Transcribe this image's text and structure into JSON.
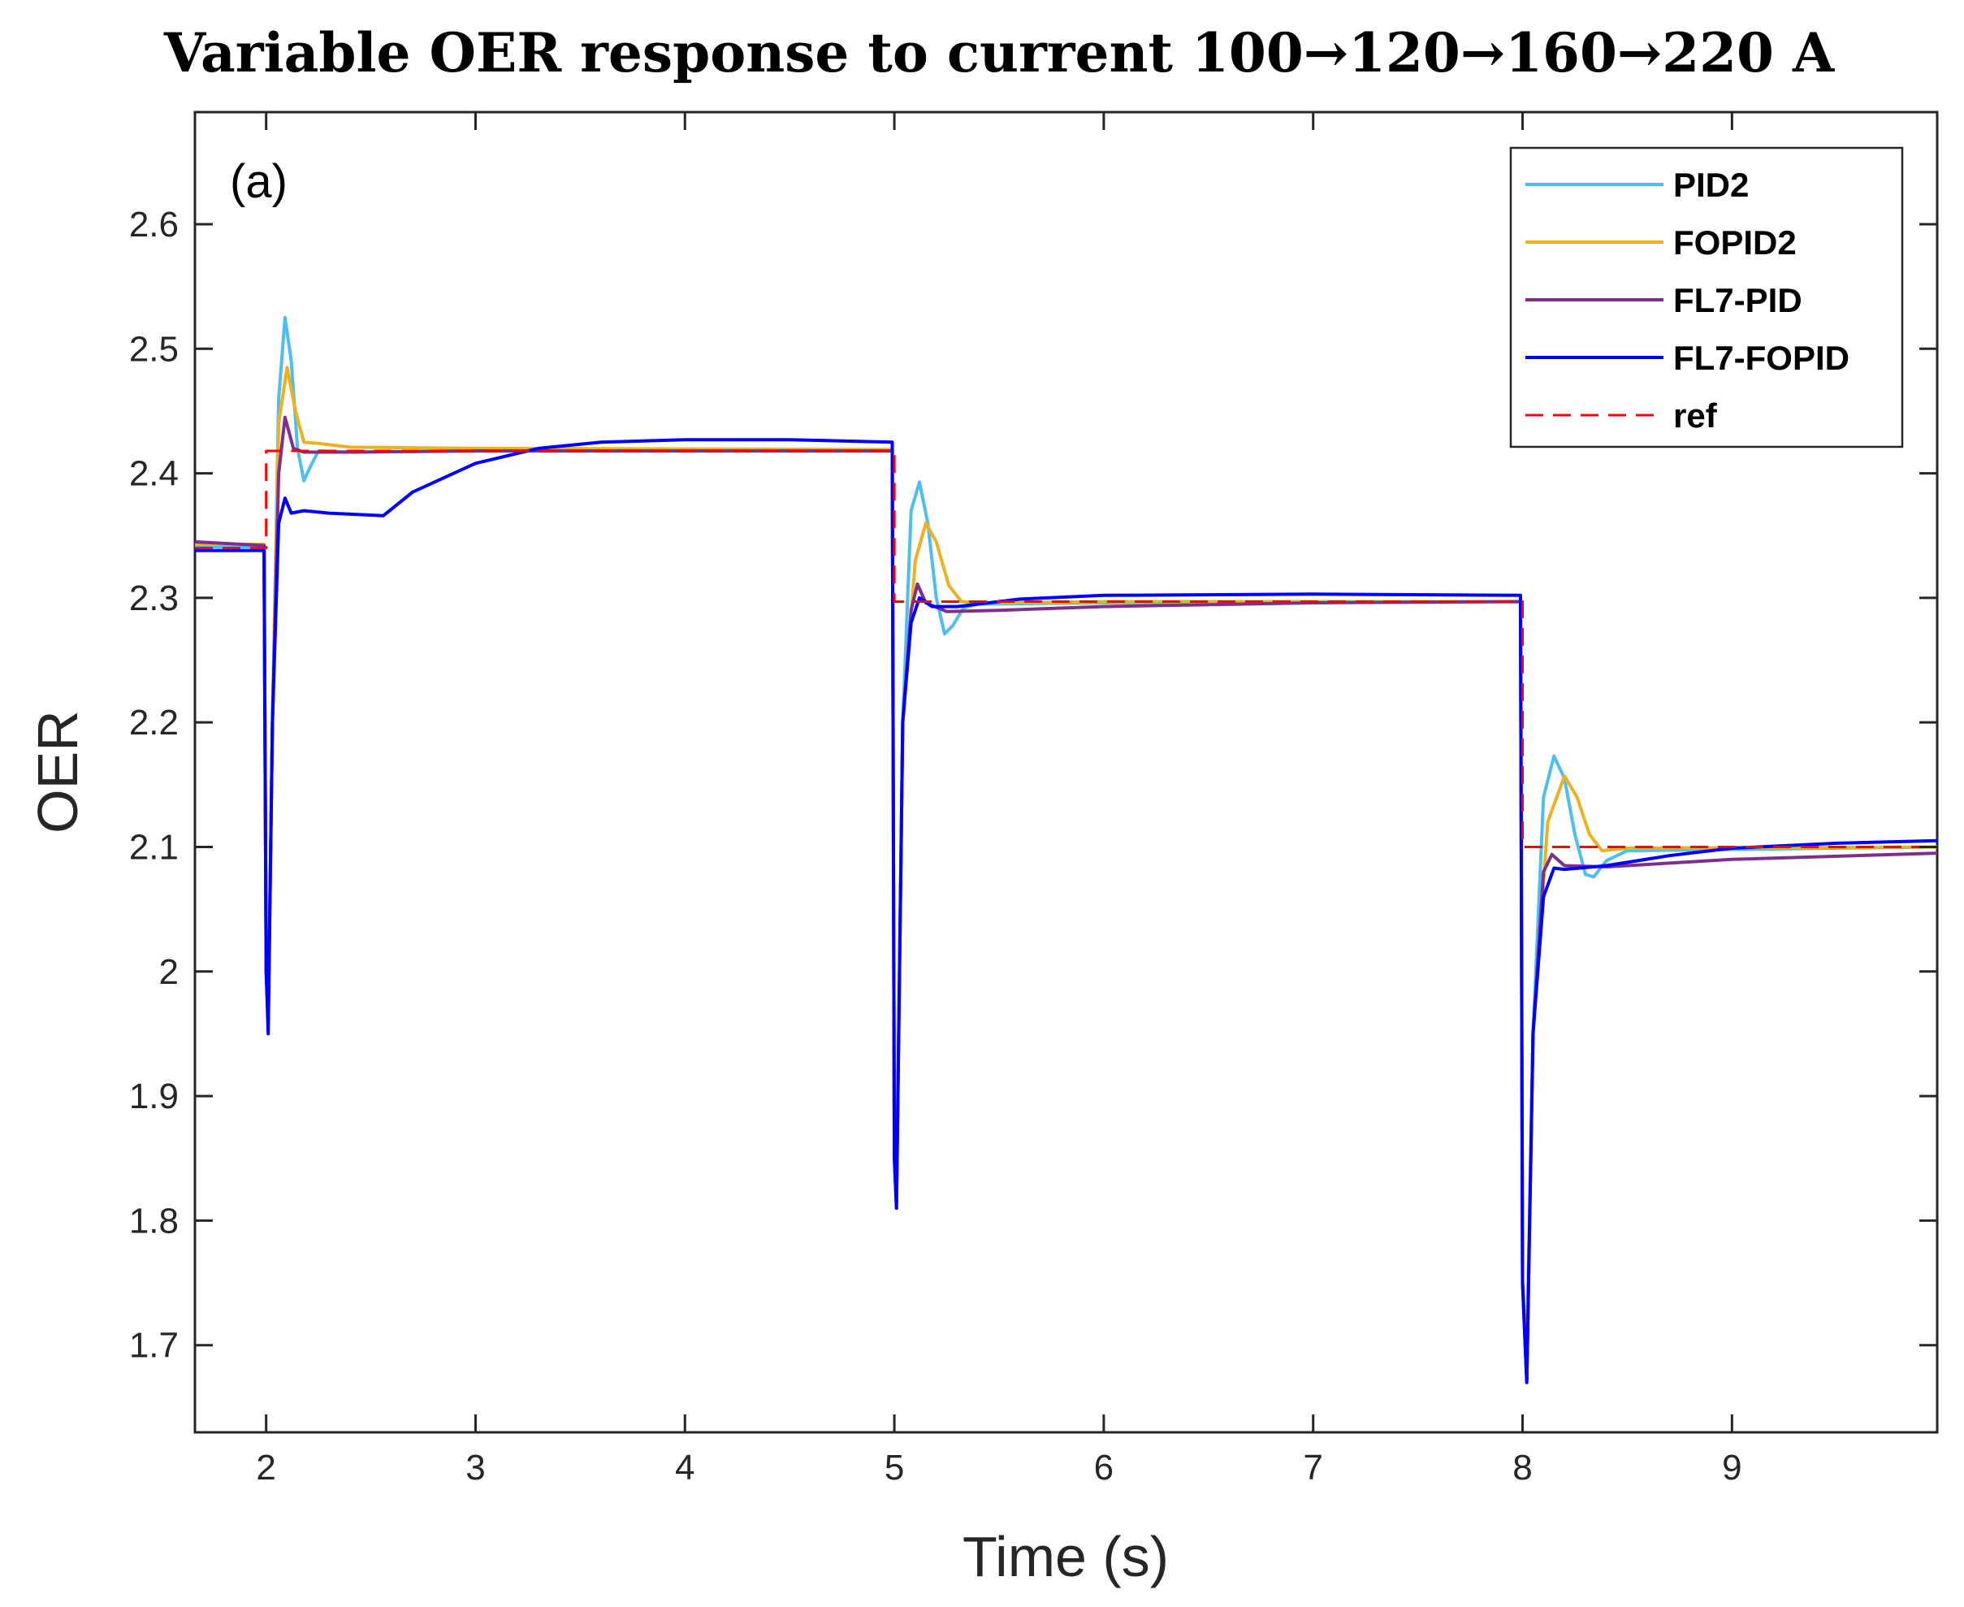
{
  "chart_data": {
    "type": "line",
    "title": "Variable  OER response to current  100→120→160→220 A",
    "panel_label": "(a)",
    "xlabel": "Time (s)",
    "ylabel": "OER",
    "xlim": [
      1.66,
      9.98
    ],
    "ylim": [
      1.63,
      2.69
    ],
    "xticks": [
      2,
      3,
      4,
      5,
      6,
      7,
      8,
      9
    ],
    "yticks": [
      1.7,
      1.8,
      1.9,
      2,
      2.1,
      2.2,
      2.3,
      2.4,
      2.5,
      2.6
    ],
    "ytick_labels": [
      "1.7",
      "1.8",
      "1.9",
      "2",
      "2.1",
      "2.2",
      "2.3",
      "2.4",
      "2.5",
      "2.6"
    ],
    "grid": false,
    "legend_position": "top-right",
    "series": [
      {
        "name": "PID2",
        "color": "#4dbeee",
        "style": "solid",
        "points": [
          [
            1.66,
            2.341
          ],
          [
            1.99,
            2.341
          ],
          [
            2.0,
            2.0
          ],
          [
            2.01,
            1.96
          ],
          [
            2.03,
            2.2
          ],
          [
            2.06,
            2.46
          ],
          [
            2.09,
            2.525
          ],
          [
            2.12,
            2.49
          ],
          [
            2.15,
            2.42
          ],
          [
            2.18,
            2.394
          ],
          [
            2.21,
            2.405
          ],
          [
            2.25,
            2.418
          ],
          [
            2.4,
            2.417
          ],
          [
            3.0,
            2.418
          ],
          [
            4.99,
            2.419
          ],
          [
            5.0,
            1.85
          ],
          [
            5.01,
            1.82
          ],
          [
            5.04,
            2.2
          ],
          [
            5.08,
            2.37
          ],
          [
            5.12,
            2.393
          ],
          [
            5.16,
            2.36
          ],
          [
            5.2,
            2.3
          ],
          [
            5.24,
            2.271
          ],
          [
            5.28,
            2.278
          ],
          [
            5.33,
            2.292
          ],
          [
            5.4,
            2.295
          ],
          [
            6.0,
            2.296
          ],
          [
            7.99,
            2.297
          ],
          [
            8.0,
            1.75
          ],
          [
            8.02,
            1.69
          ],
          [
            8.05,
            1.95
          ],
          [
            8.1,
            2.14
          ],
          [
            8.15,
            2.173
          ],
          [
            8.2,
            2.155
          ],
          [
            8.25,
            2.11
          ],
          [
            8.3,
            2.078
          ],
          [
            8.34,
            2.076
          ],
          [
            8.4,
            2.089
          ],
          [
            8.5,
            2.097
          ],
          [
            9.98,
            2.1
          ]
        ]
      },
      {
        "name": "FOPID2",
        "color": "#edb120",
        "style": "solid",
        "points": [
          [
            1.66,
            2.343
          ],
          [
            1.99,
            2.343
          ],
          [
            2.0,
            2.0
          ],
          [
            2.01,
            1.96
          ],
          [
            2.03,
            2.2
          ],
          [
            2.06,
            2.44
          ],
          [
            2.1,
            2.485
          ],
          [
            2.14,
            2.45
          ],
          [
            2.18,
            2.425
          ],
          [
            2.25,
            2.424
          ],
          [
            2.4,
            2.421
          ],
          [
            3.0,
            2.42
          ],
          [
            4.99,
            2.419
          ],
          [
            5.0,
            1.85
          ],
          [
            5.01,
            1.82
          ],
          [
            5.04,
            2.2
          ],
          [
            5.1,
            2.33
          ],
          [
            5.15,
            2.36
          ],
          [
            5.2,
            2.345
          ],
          [
            5.26,
            2.31
          ],
          [
            5.32,
            2.297
          ],
          [
            5.45,
            2.296
          ],
          [
            6.0,
            2.297
          ],
          [
            7.99,
            2.297
          ],
          [
            8.0,
            1.75
          ],
          [
            8.02,
            1.69
          ],
          [
            8.05,
            1.95
          ],
          [
            8.12,
            2.12
          ],
          [
            8.2,
            2.157
          ],
          [
            8.26,
            2.14
          ],
          [
            8.32,
            2.11
          ],
          [
            8.38,
            2.097
          ],
          [
            8.5,
            2.099
          ],
          [
            9.98,
            2.1
          ]
        ]
      },
      {
        "name": "FL7-PID",
        "color": "#7e2f8e",
        "style": "solid",
        "points": [
          [
            1.66,
            2.345
          ],
          [
            1.99,
            2.342
          ],
          [
            2.0,
            2.0
          ],
          [
            2.01,
            1.96
          ],
          [
            2.03,
            2.2
          ],
          [
            2.06,
            2.4
          ],
          [
            2.09,
            2.445
          ],
          [
            2.13,
            2.42
          ],
          [
            2.18,
            2.417
          ],
          [
            2.4,
            2.417
          ],
          [
            3.0,
            2.418
          ],
          [
            4.99,
            2.418
          ],
          [
            5.0,
            1.85
          ],
          [
            5.01,
            1.81
          ],
          [
            5.04,
            2.2
          ],
          [
            5.08,
            2.29
          ],
          [
            5.11,
            2.311
          ],
          [
            5.15,
            2.296
          ],
          [
            5.25,
            2.289
          ],
          [
            5.5,
            2.29
          ],
          [
            6.0,
            2.293
          ],
          [
            7.0,
            2.296
          ],
          [
            7.99,
            2.297
          ],
          [
            8.0,
            1.75
          ],
          [
            8.02,
            1.67
          ],
          [
            8.05,
            1.95
          ],
          [
            8.1,
            2.08
          ],
          [
            8.14,
            2.094
          ],
          [
            8.2,
            2.085
          ],
          [
            8.4,
            2.084
          ],
          [
            9.0,
            2.09
          ],
          [
            9.98,
            2.095
          ]
        ]
      },
      {
        "name": "FL7-FOPID",
        "color": "#0000ff",
        "style": "solid",
        "points": [
          [
            1.66,
            2.338
          ],
          [
            1.99,
            2.338
          ],
          [
            2.0,
            2.0
          ],
          [
            2.01,
            1.95
          ],
          [
            2.03,
            2.2
          ],
          [
            2.06,
            2.36
          ],
          [
            2.09,
            2.38
          ],
          [
            2.12,
            2.368
          ],
          [
            2.18,
            2.37
          ],
          [
            2.3,
            2.368
          ],
          [
            2.56,
            2.366
          ],
          [
            2.7,
            2.385
          ],
          [
            3.0,
            2.408
          ],
          [
            3.3,
            2.42
          ],
          [
            3.6,
            2.425
          ],
          [
            4.0,
            2.427
          ],
          [
            4.5,
            2.427
          ],
          [
            4.99,
            2.425
          ],
          [
            5.0,
            1.85
          ],
          [
            5.01,
            1.81
          ],
          [
            5.04,
            2.2
          ],
          [
            5.08,
            2.28
          ],
          [
            5.12,
            2.3
          ],
          [
            5.18,
            2.293
          ],
          [
            5.3,
            2.293
          ],
          [
            5.6,
            2.299
          ],
          [
            6.0,
            2.302
          ],
          [
            7.0,
            2.303
          ],
          [
            7.99,
            2.302
          ],
          [
            8.0,
            1.75
          ],
          [
            8.02,
            1.67
          ],
          [
            8.05,
            1.95
          ],
          [
            8.1,
            2.06
          ],
          [
            8.15,
            2.083
          ],
          [
            8.2,
            2.082
          ],
          [
            8.4,
            2.085
          ],
          [
            8.7,
            2.093
          ],
          [
            9.0,
            2.099
          ],
          [
            9.5,
            2.103
          ],
          [
            9.98,
            2.105
          ]
        ]
      },
      {
        "name": "ref",
        "color": "#ff0000",
        "style": "dashed",
        "points": [
          [
            1.66,
            2.34
          ],
          [
            2.0,
            2.34
          ],
          [
            2.0,
            2.418
          ],
          [
            5.0,
            2.418
          ],
          [
            5.0,
            2.297
          ],
          [
            8.0,
            2.297
          ],
          [
            8.0,
            2.1
          ],
          [
            9.98,
            2.1
          ]
        ]
      }
    ]
  }
}
